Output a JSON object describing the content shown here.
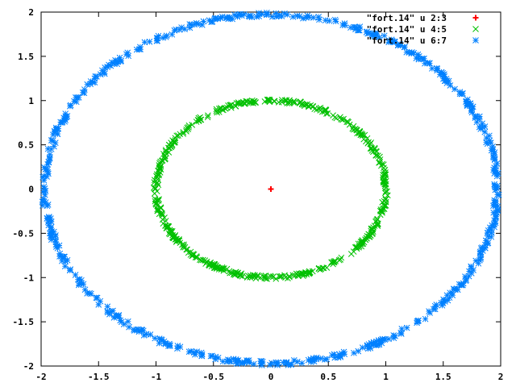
{
  "chart_data": {
    "type": "scatter",
    "xlim": [
      -2,
      2
    ],
    "ylim": [
      -2,
      2
    ],
    "grid": false,
    "legend_position": "top-right",
    "x_ticks": [
      "-2",
      "-1.5",
      "-1",
      "-0.5",
      "0",
      "0.5",
      "1",
      "1.5",
      "2"
    ],
    "y_ticks": [
      "2",
      "1.5",
      "1",
      "0.5",
      "0",
      "-0.5",
      "-1",
      "-1.5",
      "-2"
    ],
    "series": [
      {
        "name": "\"fort.14\" u 2:3",
        "marker": "plus",
        "color": "#ff0000",
        "points": [
          [
            0,
            0
          ]
        ]
      },
      {
        "name": "\"fort.14\" u 4:5",
        "marker": "cross",
        "color": "#00c000",
        "shape": "ring",
        "center": [
          0,
          0
        ],
        "radius": 1.0,
        "jitter": 0.02,
        "count": 520
      },
      {
        "name": "\"fort.14\" u 6:7",
        "marker": "star",
        "color": "#0080ff",
        "shape": "ring",
        "center": [
          0,
          0
        ],
        "radius": 1.97,
        "jitter": 0.025,
        "count": 620
      }
    ]
  }
}
